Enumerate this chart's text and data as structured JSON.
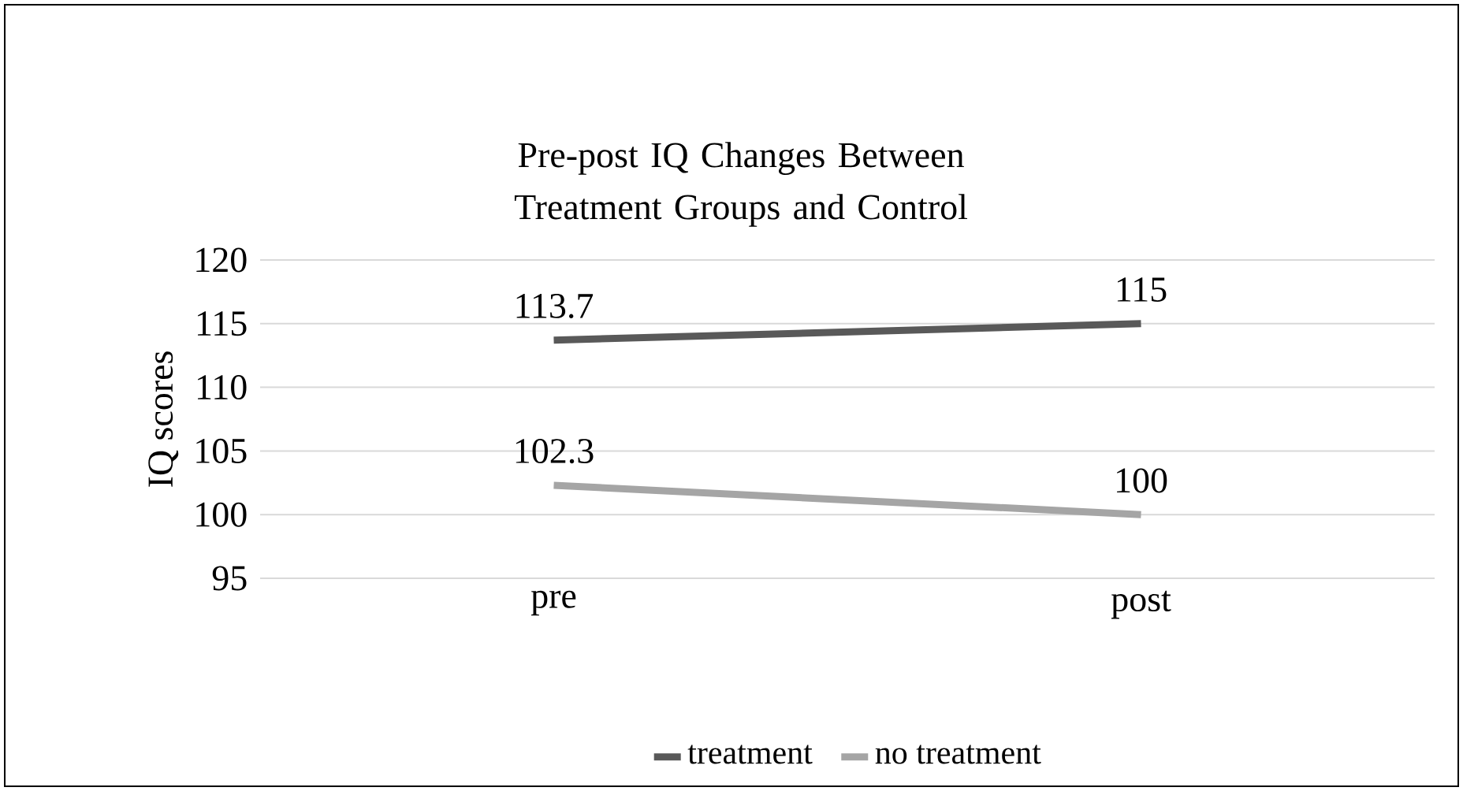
{
  "chart_data": {
    "type": "line",
    "title": "Pre-post IQ Changes Between Treatment Groups and Control",
    "ylabel": "IQ scores",
    "categories": [
      "pre",
      "post"
    ],
    "series": [
      {
        "name": "treatment",
        "color": "#595959",
        "values": [
          113.7,
          115
        ]
      },
      {
        "name": "no treatment",
        "color": "#a5a5a5",
        "values": [
          102.3,
          100
        ]
      }
    ],
    "ylim": [
      95,
      120
    ],
    "yticks": [
      95,
      100,
      105,
      110,
      115,
      120
    ],
    "grid": "y",
    "legend": "bottom",
    "data_labels": true,
    "marker": "none",
    "line_style": "solid"
  }
}
